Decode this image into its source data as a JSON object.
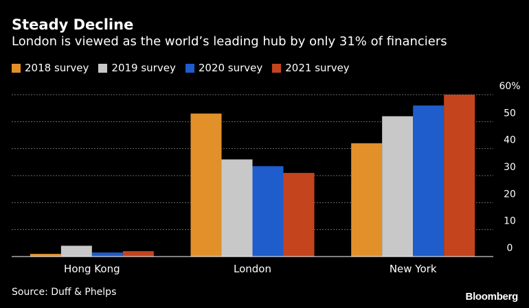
{
  "header": {
    "title": "Steady Decline",
    "subtitle": "London is viewed as the world’s leading hub by only 31% of financiers"
  },
  "footer": {
    "source": "Source: Duff & Phelps",
    "brand": "Bloomberg"
  },
  "chart_data": {
    "type": "bar",
    "title": "Steady Decline",
    "subtitle": "London is viewed as the world’s leading hub by only 31% of financiers",
    "categories": [
      "Hong Kong",
      "London",
      "New York"
    ],
    "series": [
      {
        "name": "2018 survey",
        "color": "#e2902a",
        "values": [
          1,
          53,
          42
        ]
      },
      {
        "name": "2019 survey",
        "color": "#c8c8c8",
        "values": [
          4,
          36,
          52
        ]
      },
      {
        "name": "2020 survey",
        "color": "#1f5ccc",
        "values": [
          1.5,
          33.5,
          56
        ]
      },
      {
        "name": "2021 survey",
        "color": "#c4441e",
        "values": [
          2,
          31,
          60
        ]
      }
    ],
    "ylim": [
      0,
      60
    ],
    "yticks": [
      "0",
      "10",
      "20",
      "30",
      "40",
      "50",
      "60%"
    ],
    "grid": true,
    "legend": "top-left",
    "y_axis_side": "right"
  }
}
